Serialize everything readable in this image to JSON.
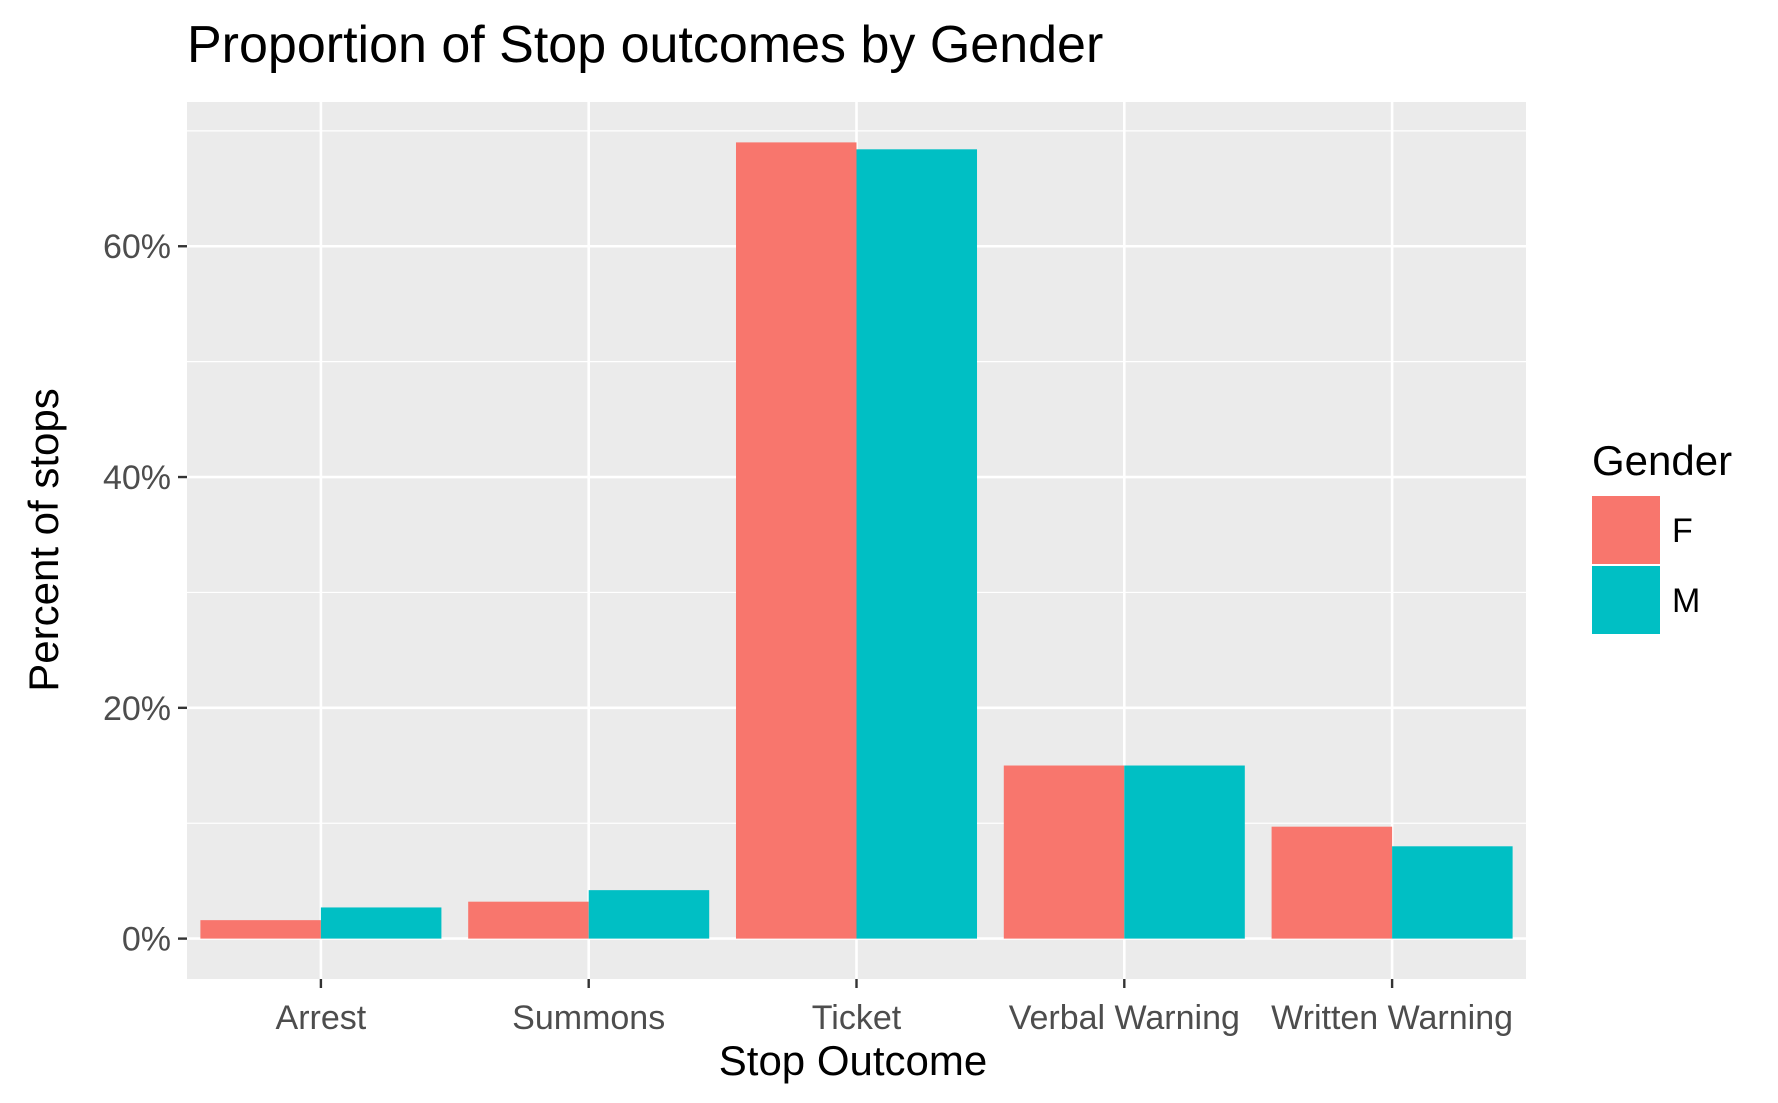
{
  "chart_data": {
    "type": "bar",
    "title": "Proportion of Stop outcomes by Gender",
    "xlabel": "Stop Outcome",
    "ylabel": "Percent of stops",
    "categories": [
      "Arrest",
      "Summons",
      "Ticket",
      "Verbal Warning",
      "Written Warning"
    ],
    "series": [
      {
        "name": "F",
        "values": [
          1.6,
          3.2,
          69.0,
          15.0,
          9.7
        ],
        "color": "#F8766D"
      },
      {
        "name": "M",
        "values": [
          2.7,
          4.2,
          68.4,
          15.0,
          8.0
        ],
        "color": "#00BFC4"
      }
    ],
    "ylim": [
      -3.5,
      72.5
    ],
    "yticks": [
      0,
      20,
      40,
      60
    ],
    "ytick_labels": [
      "0%",
      "20%",
      "40%",
      "60%"
    ],
    "grid": true,
    "legend": {
      "title": "Gender",
      "position": "right"
    },
    "panel_color": "#EBEBEB",
    "grid_color": "#FFFFFF"
  }
}
